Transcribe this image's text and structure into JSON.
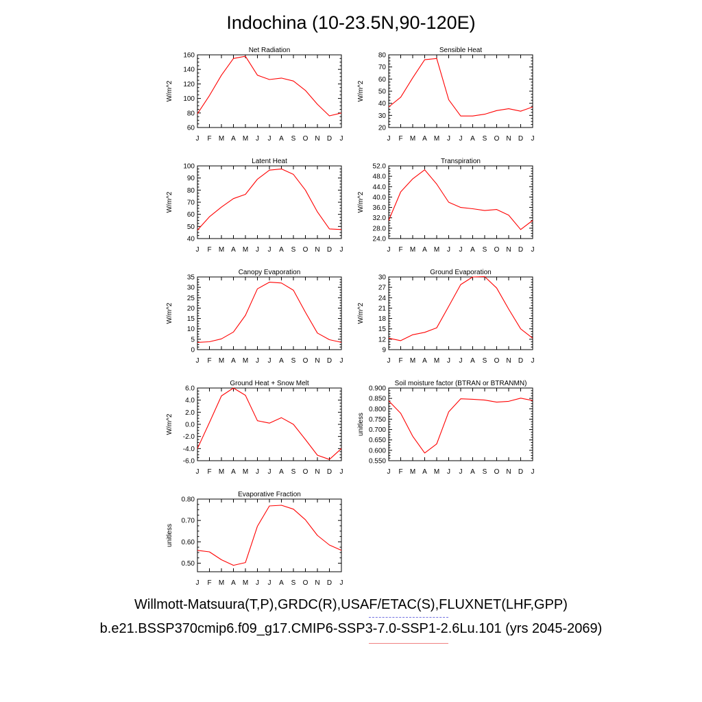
{
  "title": "Indochina (10-23.5N,90-120E)",
  "legend": {
    "observations": "Willmott-Matsuura(T,P),GRDC(R),USAF/ETAC(S),FLUXNET(LHF,GPP)",
    "case": "b.e21.BSSP370cmip6.f09_g17.CMIP6-SSP3-7.0-SSP1-2.6Lu.101 (yrs 2045-2069)",
    "observations_color": "#7070e0",
    "case_color": "#ff0000"
  },
  "chart_data": [
    {
      "type": "line",
      "title": "Net Radiation",
      "ylabel": "W/m^2",
      "categories": [
        "J",
        "F",
        "M",
        "A",
        "M",
        "J",
        "J",
        "A",
        "S",
        "O",
        "N",
        "D",
        "J"
      ],
      "ylim": [
        60,
        160
      ],
      "yticks": [
        "60",
        "80",
        "100",
        "120",
        "140",
        "160"
      ],
      "series": [
        {
          "values": [
            79,
            104,
            132,
            155,
            158,
            132,
            126,
            128,
            124,
            111,
            92,
            76,
            80
          ]
        }
      ]
    },
    {
      "type": "line",
      "title": "Sensible Heat",
      "ylabel": "W/m^2",
      "categories": [
        "J",
        "F",
        "M",
        "A",
        "M",
        "J",
        "J",
        "A",
        "S",
        "O",
        "N",
        "D",
        "J"
      ],
      "ylim": [
        20,
        80
      ],
      "yticks": [
        "20",
        "30",
        "40",
        "50",
        "60",
        "70",
        "80"
      ],
      "series": [
        {
          "values": [
            37,
            45,
            61,
            76,
            77,
            43,
            29.5,
            29.5,
            31,
            34,
            35.5,
            33.5,
            37
          ]
        }
      ]
    },
    {
      "type": "line",
      "title": "Latent Heat",
      "ylabel": "W/m^2",
      "categories": [
        "J",
        "F",
        "M",
        "A",
        "M",
        "J",
        "J",
        "A",
        "S",
        "O",
        "N",
        "D",
        "J"
      ],
      "ylim": [
        40,
        100
      ],
      "yticks": [
        "40",
        "50",
        "60",
        "70",
        "80",
        "90",
        "100"
      ],
      "series": [
        {
          "values": [
            47,
            58,
            66,
            73,
            76.5,
            89,
            96.5,
            97.5,
            93,
            80,
            62,
            48,
            47.5
          ]
        }
      ]
    },
    {
      "type": "line",
      "title": "Transpiration",
      "ylabel": "W/m^2",
      "categories": [
        "J",
        "F",
        "M",
        "A",
        "M",
        "J",
        "J",
        "A",
        "S",
        "O",
        "N",
        "D",
        "J"
      ],
      "ylim": [
        24,
        52
      ],
      "yticks": [
        "24.0",
        "28.0",
        "32.0",
        "36.0",
        "40.0",
        "44.0",
        "48.0",
        "52.0"
      ],
      "series": [
        {
          "values": [
            31,
            42,
            47,
            50.5,
            45,
            38,
            36,
            35.5,
            34.8,
            35.2,
            33,
            27.5,
            31
          ]
        }
      ]
    },
    {
      "type": "line",
      "title": "Canopy Evaporation",
      "ylabel": "W/m^2",
      "categories": [
        "J",
        "F",
        "M",
        "A",
        "M",
        "J",
        "J",
        "A",
        "S",
        "O",
        "N",
        "D",
        "J"
      ],
      "ylim": [
        0,
        35
      ],
      "yticks": [
        "0",
        "5",
        "10",
        "15",
        "20",
        "25",
        "30",
        "35"
      ],
      "series": [
        {
          "values": [
            3.5,
            3.8,
            5.2,
            8.5,
            16.5,
            29.3,
            32.5,
            32.1,
            28.6,
            18,
            8,
            4.8,
            3.5
          ]
        }
      ]
    },
    {
      "type": "line",
      "title": "Ground Evaporation",
      "ylabel": "W/m^2",
      "categories": [
        "J",
        "F",
        "M",
        "A",
        "M",
        "J",
        "J",
        "A",
        "S",
        "O",
        "N",
        "D",
        "J"
      ],
      "ylim": [
        9,
        30
      ],
      "yticks": [
        "9",
        "12",
        "15",
        "18",
        "21",
        "24",
        "27",
        "30"
      ],
      "series": [
        {
          "values": [
            12.3,
            11.6,
            13.3,
            14,
            15.3,
            21.5,
            27.8,
            30,
            30.1,
            26.8,
            20.7,
            15,
            12.3
          ]
        }
      ]
    },
    {
      "type": "line",
      "title": "Ground Heat + Snow Melt",
      "ylabel": "W/m^2",
      "categories": [
        "J",
        "F",
        "M",
        "A",
        "M",
        "J",
        "J",
        "A",
        "S",
        "O",
        "N",
        "D",
        "J"
      ],
      "ylim": [
        -6,
        6
      ],
      "yticks": [
        "-6.0",
        "-4.0",
        "-2.0",
        "0.0",
        "2.0",
        "4.0",
        "6.0"
      ],
      "series": [
        {
          "values": [
            -4,
            0.3,
            4.7,
            6,
            4.8,
            0.6,
            0.2,
            1.1,
            0,
            -2.5,
            -5.1,
            -5.8,
            -4
          ]
        }
      ]
    },
    {
      "type": "line",
      "title": "Soil moisture factor (BTRAN or BTRANMN)",
      "ylabel": "unitless",
      "categories": [
        "J",
        "F",
        "M",
        "A",
        "M",
        "J",
        "J",
        "A",
        "S",
        "O",
        "N",
        "D",
        "J"
      ],
      "ylim": [
        0.55,
        0.9
      ],
      "yticks": [
        "0.550",
        "0.600",
        "0.650",
        "0.700",
        "0.750",
        "0.800",
        "0.850",
        "0.900"
      ],
      "series": [
        {
          "values": [
            0.838,
            0.778,
            0.668,
            0.587,
            0.631,
            0.785,
            0.848,
            0.846,
            0.842,
            0.832,
            0.836,
            0.851,
            0.84
          ]
        }
      ]
    },
    {
      "type": "line",
      "title": "Evaporative Fraction",
      "ylabel": "unitless",
      "categories": [
        "J",
        "F",
        "M",
        "A",
        "M",
        "J",
        "J",
        "A",
        "S",
        "O",
        "N",
        "D",
        "J"
      ],
      "ylim": [
        0.46,
        0.8
      ],
      "yticks": [
        "0.50",
        "0.60",
        "0.70",
        "0.80"
      ],
      "series": [
        {
          "values": [
            0.56,
            0.553,
            0.516,
            0.49,
            0.503,
            0.673,
            0.768,
            0.771,
            0.753,
            0.703,
            0.63,
            0.585,
            0.56
          ]
        }
      ]
    }
  ]
}
